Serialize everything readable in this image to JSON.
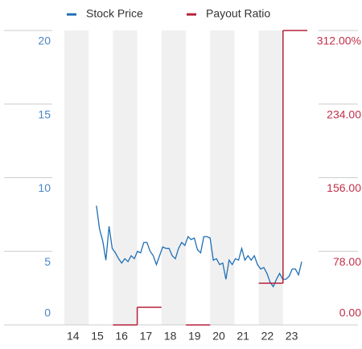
{
  "chart_data": {
    "type": "line",
    "xlim": [
      2014,
      2024
    ],
    "xticks": [
      {
        "value": 2014,
        "label": "14"
      },
      {
        "value": 2015,
        "label": "15"
      },
      {
        "value": 2016,
        "label": "16"
      },
      {
        "value": 2017,
        "label": "17"
      },
      {
        "value": 2018,
        "label": "18"
      },
      {
        "value": 2019,
        "label": "19"
      },
      {
        "value": 2020,
        "label": "20"
      },
      {
        "value": 2021,
        "label": "21"
      },
      {
        "value": 2022,
        "label": "22"
      },
      {
        "value": 2023,
        "label": "23"
      }
    ],
    "ylim": [
      0,
      20
    ],
    "yticks": [
      0,
      5,
      10,
      15,
      20
    ],
    "y2lim": [
      0,
      312
    ],
    "y2ticks": [
      {
        "value": 0,
        "label": "0.00"
      },
      {
        "value": 78,
        "label": "78.00"
      },
      {
        "value": 156,
        "label": "156.00"
      },
      {
        "value": 234,
        "label": "234.00"
      },
      {
        "value": 312,
        "label": "312.00%"
      }
    ],
    "alternating_bands": true,
    "series": [
      {
        "name": "Stock Price",
        "color": "#1f6fb5",
        "x": [
          2015.32,
          2015.45,
          2015.58,
          2015.71,
          2015.84,
          2015.97,
          2016.1,
          2016.23,
          2016.36,
          2016.49,
          2016.62,
          2016.75,
          2016.88,
          2017.01,
          2017.14,
          2017.27,
          2017.4,
          2017.53,
          2017.66,
          2017.79,
          2017.92,
          2018.05,
          2018.18,
          2018.31,
          2018.44,
          2018.57,
          2018.7,
          2018.83,
          2018.96,
          2019.09,
          2019.22,
          2019.35,
          2019.48,
          2019.61,
          2019.74,
          2019.87,
          2020.0,
          2020.13,
          2020.26,
          2020.39,
          2020.52,
          2020.65,
          2020.78,
          2020.91,
          2021.04,
          2021.17,
          2021.3,
          2021.43,
          2021.56,
          2021.69,
          2021.82,
          2021.95,
          2022.08,
          2022.21,
          2022.34,
          2022.47,
          2022.6,
          2022.73,
          2022.86,
          2022.99,
          2023.12,
          2023.25,
          2023.38,
          2023.51,
          2023.64,
          2023.77
        ],
        "values": [
          8.1,
          6.5,
          5.7,
          4.4,
          6.7,
          5.2,
          4.9,
          4.5,
          4.2,
          4.5,
          4.3,
          4.7,
          4.5,
          5.0,
          4.9,
          5.6,
          5.6,
          5.0,
          4.7,
          4.1,
          4.7,
          5.3,
          5.2,
          5.2,
          4.7,
          4.5,
          5.2,
          5.6,
          5.4,
          6.0,
          5.8,
          5.9,
          5.1,
          4.9,
          6.0,
          6.0,
          5.9,
          4.4,
          4.5,
          4.1,
          4.2,
          3.1,
          4.4,
          4.1,
          4.5,
          4.4,
          5.2,
          4.4,
          4.7,
          4.4,
          4.7,
          4.1,
          3.8,
          3.9,
          3.5,
          2.9,
          2.6,
          3.1,
          3.5,
          3.1,
          3.1,
          3.3,
          3.8,
          3.8,
          3.4,
          4.3
        ]
      },
      {
        "name": "Payout Ratio",
        "color": "#b5203a",
        "axis": "y2",
        "step": true,
        "x": [
          2014,
          2015,
          2016,
          2017,
          2018,
          2019,
          2020,
          2021,
          2022,
          2023
        ],
        "values": [
          null,
          null,
          0,
          18.7,
          null,
          0,
          null,
          null,
          44.2,
          312
        ]
      }
    ]
  }
}
